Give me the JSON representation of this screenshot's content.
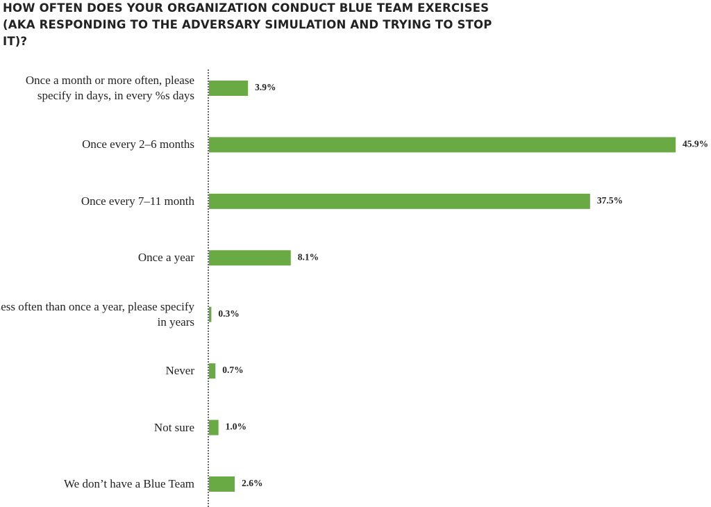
{
  "chart_data": {
    "type": "bar",
    "orientation": "horizontal",
    "title": "HOW OFTEN DOES YOUR ORGANIZATION CONDUCT BLUE TEAM EXERCISES (AKA RESPONDING TO THE ADVERSARY SIMULATION AND TRYING TO STOP IT)?",
    "categories": [
      "Once a month or more often, please specify in  days, in every %s days",
      "Once every 2–6 months",
      "Once every 7–11 month",
      "Once a year",
      "Less often than once a year, please specify in years",
      "Never",
      "Not sure",
      "We don’t have a Blue Team"
    ],
    "values": [
      3.9,
      45.9,
      37.5,
      8.1,
      0.3,
      0.7,
      1.0,
      2.6
    ],
    "value_labels": [
      "3.9%",
      "45.9%",
      "37.5%",
      "8.1%",
      "0.3%",
      "0.7%",
      "1.0%",
      "2.6%"
    ],
    "color": "#6aaa45"
  }
}
